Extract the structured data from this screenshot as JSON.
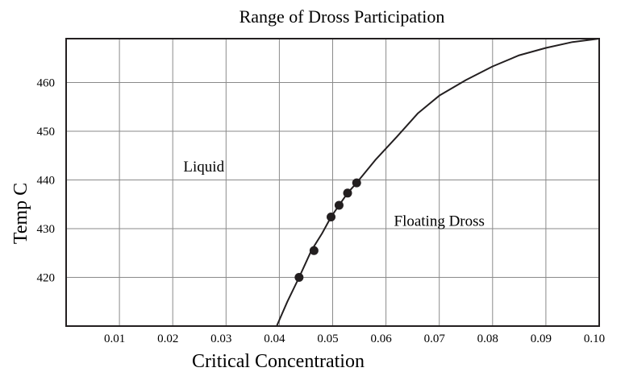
{
  "chart_data": {
    "type": "line",
    "title": "Range of Dross Participation",
    "xlabel": "Critical Concentration",
    "ylabel": "Temp C",
    "xlim": [
      0.0,
      0.1
    ],
    "ylim": [
      410,
      469
    ],
    "x_ticks": [
      0.01,
      0.02,
      0.03,
      0.04,
      0.05,
      0.06,
      0.07,
      0.08,
      0.09,
      0.1
    ],
    "x_tick_labels": [
      "0.01",
      "0.02",
      "0.03",
      "0.04",
      "0.05",
      "0.06",
      "0.07",
      "0.08",
      "0.09",
      "0.10"
    ],
    "y_ticks": [
      420,
      430,
      440,
      450,
      460
    ],
    "y_tick_labels": [
      "420",
      "430",
      "440",
      "450",
      "460"
    ],
    "grid": true,
    "series": [
      {
        "type": "line",
        "x": [
          0.0395,
          0.0415,
          0.0437,
          0.046,
          0.048,
          0.0497,
          0.0512,
          0.0528,
          0.0545,
          0.058,
          0.062,
          0.066,
          0.07,
          0.075,
          0.08,
          0.085,
          0.09,
          0.095,
          0.1
        ],
        "y": [
          410,
          415,
          420,
          425.5,
          429,
          432.4,
          434.8,
          437.3,
          439.4,
          444.1,
          448.8,
          453.7,
          457.3,
          460.5,
          463.3,
          465.6,
          467.1,
          468.3,
          469
        ]
      },
      {
        "type": "scatter",
        "x": [
          0.0437,
          0.0465,
          0.0497,
          0.0512,
          0.0528,
          0.0545
        ],
        "y": [
          420,
          425.5,
          432.4,
          434.8,
          437.3,
          439.4
        ]
      }
    ],
    "annotations": [
      {
        "text": "Liquid",
        "x": 0.022,
        "y": 442.7
      },
      {
        "text": "Floating Dross",
        "x": 0.0615,
        "y": 431.6
      }
    ]
  }
}
